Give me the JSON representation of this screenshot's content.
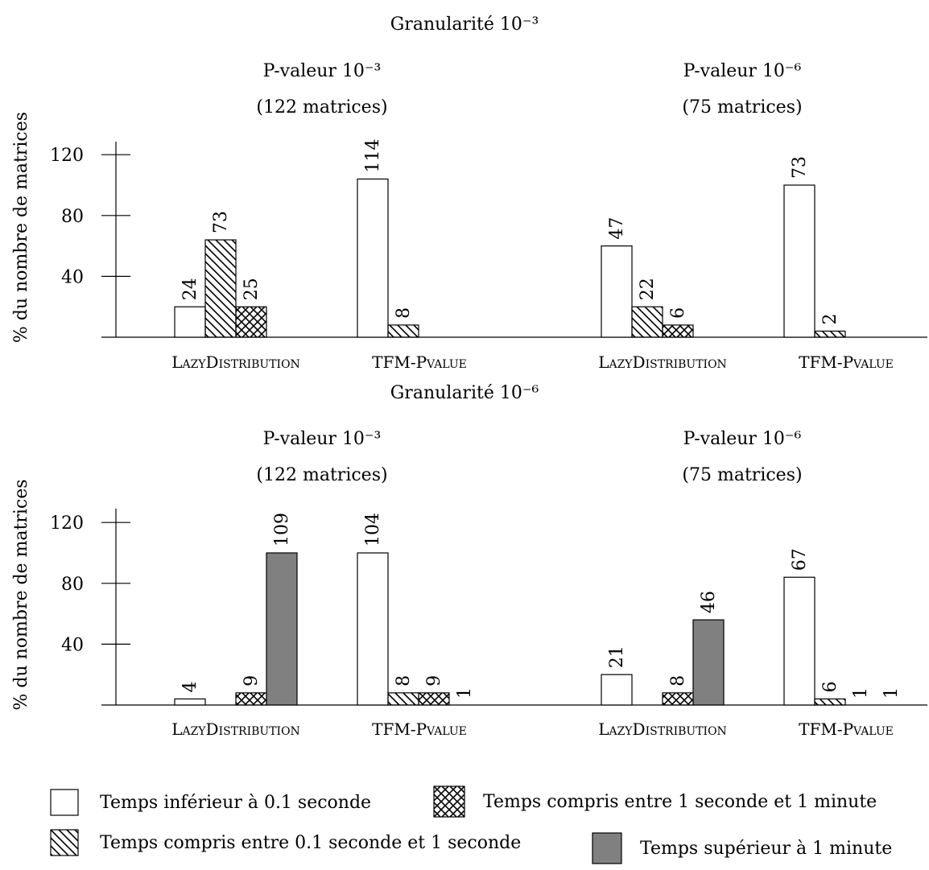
{
  "chart_data": [
    {
      "type": "bar",
      "title": "Granularité 10⁻³",
      "ylabel": "% du nombre de matrices",
      "yticks": [
        40,
        80,
        120
      ],
      "ylim": [
        0,
        130
      ],
      "panels": [
        {
          "subtitle": "P-valeur 10⁻³",
          "subtitle2": "(122 matrices)",
          "groups": [
            {
              "category": "LazyDistribution",
              "bars": [
                {
                  "series": "Temps inférieur à 0.1 seconde",
                  "value": 20,
                  "label": "24"
                },
                {
                  "series": "Temps compris entre 0.1 seconde et 1 seconde",
                  "value": 64,
                  "label": "73"
                },
                {
                  "series": "Temps compris entre 1 seconde et 1 minute",
                  "value": 20,
                  "label": "25"
                }
              ]
            },
            {
              "category": "TFM-Pvalue",
              "bars": [
                {
                  "series": "Temps inférieur à 0.1 seconde",
                  "value": 104,
                  "label": "114"
                },
                {
                  "series": "Temps compris entre 0.1 seconde et 1 seconde",
                  "value": 8,
                  "label": "8"
                }
              ]
            }
          ]
        },
        {
          "subtitle": "P-valeur 10⁻⁶",
          "subtitle2": "(75 matrices)",
          "groups": [
            {
              "category": "LazyDistribution",
              "bars": [
                {
                  "series": "Temps inférieur à 0.1 seconde",
                  "value": 60,
                  "label": "47"
                },
                {
                  "series": "Temps compris entre 0.1 seconde et 1 seconde",
                  "value": 20,
                  "label": "22"
                },
                {
                  "series": "Temps compris entre 1 seconde et 1 minute",
                  "value": 8,
                  "label": "6"
                }
              ]
            },
            {
              "category": "TFM-Pvalue",
              "bars": [
                {
                  "series": "Temps inférieur à 0.1 seconde",
                  "value": 100,
                  "label": "73"
                },
                {
                  "series": "Temps compris entre 0.1 seconde et 1 seconde",
                  "value": 4,
                  "label": "2"
                }
              ]
            }
          ]
        }
      ]
    },
    {
      "type": "bar",
      "title": "Granularité 10⁻⁶",
      "ylabel": "% du nombre de matrices",
      "yticks": [
        40,
        80,
        120
      ],
      "ylim": [
        0,
        130
      ],
      "panels": [
        {
          "subtitle": "P-valeur 10⁻³",
          "subtitle2": "(122 matrices)",
          "groups": [
            {
              "category": "LazyDistribution",
              "bars": [
                {
                  "series": "Temps inférieur à 0.1 seconde",
                  "value": 4,
                  "label": "4"
                },
                {
                  "series": "Temps compris entre 0.1 seconde et 1 seconde",
                  "value": 0,
                  "label": ""
                },
                {
                  "series": "Temps compris entre 1 seconde et 1 minute",
                  "value": 8,
                  "label": "9"
                },
                {
                  "series": "Temps supérieur à 1 minute",
                  "value": 100,
                  "label": "109"
                }
              ]
            },
            {
              "category": "TFM-Pvalue",
              "bars": [
                {
                  "series": "Temps inférieur à 0.1 seconde",
                  "value": 100,
                  "label": "104"
                },
                {
                  "series": "Temps compris entre 0.1 seconde et 1 seconde",
                  "value": 8,
                  "label": "8"
                },
                {
                  "series": "Temps compris entre 1 seconde et 1 minute",
                  "value": 8,
                  "label": "9"
                },
                {
                  "series": "Temps supérieur à 1 minute",
                  "value": 0,
                  "label": "1"
                }
              ]
            }
          ]
        },
        {
          "subtitle": "P-valeur 10⁻⁶",
          "subtitle2": "(75 matrices)",
          "groups": [
            {
              "category": "LazyDistribution",
              "bars": [
                {
                  "series": "Temps inférieur à 0.1 seconde",
                  "value": 20,
                  "label": "21"
                },
                {
                  "series": "Temps compris entre 0.1 seconde et 1 seconde",
                  "value": 0,
                  "label": ""
                },
                {
                  "series": "Temps compris entre 1 seconde et 1 minute",
                  "value": 8,
                  "label": "8"
                },
                {
                  "series": "Temps supérieur à 1 minute",
                  "value": 56,
                  "label": "46"
                }
              ]
            },
            {
              "category": "TFM-Pvalue",
              "bars": [
                {
                  "series": "Temps inférieur à 0.1 seconde",
                  "value": 84,
                  "label": "67"
                },
                {
                  "series": "Temps compris entre 0.1 seconde et 1 seconde",
                  "value": 4,
                  "label": "6"
                },
                {
                  "series": "Temps compris entre 1 seconde et 1 minute",
                  "value": 0,
                  "label": "1"
                },
                {
                  "series": "Temps supérieur à 1 minute",
                  "value": 0,
                  "label": "1"
                }
              ]
            }
          ]
        }
      ]
    }
  ],
  "legend": {
    "placement": "bottom",
    "items": [
      {
        "pattern": "white",
        "label": "Temps inférieur à 0.1 seconde"
      },
      {
        "pattern": "crosshatch",
        "label": "Temps compris entre 1 seconde et 1 minute"
      },
      {
        "pattern": "diagonal",
        "label": "Temps compris entre 0.1 seconde et 1 seconde"
      },
      {
        "pattern": "gray",
        "label": "Temps supérieur à 1 minute"
      }
    ]
  },
  "colors": {
    "gray_fill": "#808080",
    "stroke": "#000000",
    "white_fill": "#ffffff"
  }
}
